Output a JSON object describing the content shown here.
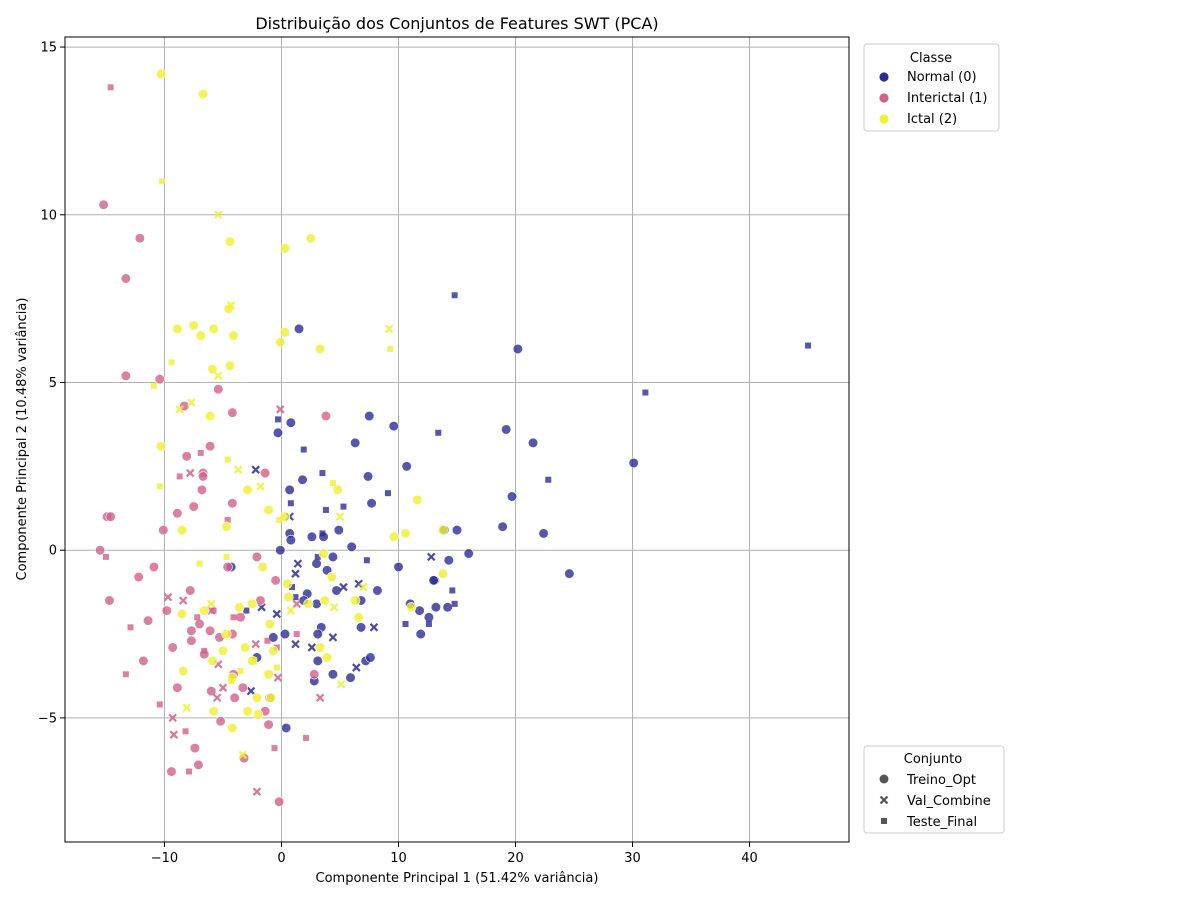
{
  "chart_data": {
    "type": "scatter",
    "title": "Distribuição dos Conjuntos de Features SWT (PCA)",
    "xlabel": "Componente Principal 1 (51.42% variância)",
    "ylabel": "Componente Principal 2 (10.48% variância)",
    "xlim": [
      -18.5,
      48.5
    ],
    "ylim": [
      -8.7,
      15.3
    ],
    "xticks": [
      -10,
      0,
      10,
      20,
      30,
      40
    ],
    "yticks": [
      -5,
      0,
      5,
      10,
      15
    ],
    "grid": true,
    "legend_hue": {
      "title": "Classe",
      "placement": "top-right outside",
      "entries": [
        {
          "label": "Normal (0)",
          "color": "#2c2c96"
        },
        {
          "label": "Interictal (1)",
          "color": "#d0608c"
        },
        {
          "label": "Ictal (2)",
          "color": "#f0f030"
        }
      ]
    },
    "legend_style": {
      "title": "Conjunto",
      "placement": "bottom-right outside",
      "entries": [
        {
          "label": "Treino_Opt",
          "marker": "circle"
        },
        {
          "label": "Val_Combine",
          "marker": "x"
        },
        {
          "label": "Teste_Final",
          "marker": "square"
        }
      ]
    },
    "series": [
      {
        "class": "Normal (0)",
        "set": "Treino_Opt",
        "color": "#2c2c96",
        "marker": "circle",
        "points": [
          [
            1.5,
            6.6
          ],
          [
            20.2,
            6.0
          ],
          [
            7.5,
            4.0
          ],
          [
            9.6,
            3.7
          ],
          [
            19.2,
            3.6
          ],
          [
            21.5,
            3.2
          ],
          [
            6.3,
            3.2
          ],
          [
            0.8,
            3.8
          ],
          [
            -0.3,
            3.5
          ],
          [
            30.1,
            2.6
          ],
          [
            10.7,
            2.5
          ],
          [
            7.4,
            2.2
          ],
          [
            1.8,
            2.1
          ],
          [
            0.7,
            1.8
          ],
          [
            19.7,
            1.6
          ],
          [
            7.7,
            1.4
          ],
          [
            4.9,
            0.6
          ],
          [
            13.9,
            0.6
          ],
          [
            15.0,
            0.6
          ],
          [
            18.9,
            0.7
          ],
          [
            22.4,
            0.5
          ],
          [
            0.7,
            0.5
          ],
          [
            2.6,
            0.4
          ],
          [
            3.6,
            0.4
          ],
          [
            0.8,
            0.3
          ],
          [
            6.0,
            0.1
          ],
          [
            -0.1,
            0.0
          ],
          [
            16.0,
            -0.1
          ],
          [
            4.4,
            -0.2
          ],
          [
            14.3,
            -0.3
          ],
          [
            3.0,
            -0.4
          ],
          [
            10.0,
            -0.5
          ],
          [
            -4.3,
            -0.5
          ],
          [
            3.9,
            -0.6
          ],
          [
            24.6,
            -0.7
          ],
          [
            13.1,
            -0.9
          ],
          [
            13.0,
            -0.9
          ],
          [
            4.7,
            -1.2
          ],
          [
            8.2,
            -1.2
          ],
          [
            2.2,
            -1.3
          ],
          [
            11.0,
            -1.6
          ],
          [
            13.2,
            -1.7
          ],
          [
            14.2,
            -1.7
          ],
          [
            1.9,
            -1.5
          ],
          [
            6.8,
            -1.5
          ],
          [
            3.0,
            -1.6
          ],
          [
            11.8,
            -1.8
          ],
          [
            12.6,
            -2.0
          ],
          [
            6.8,
            -2.3
          ],
          [
            3.4,
            -2.3
          ],
          [
            11.9,
            -2.5
          ],
          [
            0.3,
            -2.5
          ],
          [
            3.1,
            -2.5
          ],
          [
            -0.7,
            -2.6
          ],
          [
            7.2,
            -3.3
          ],
          [
            3.1,
            -3.3
          ],
          [
            7.6,
            -3.2
          ],
          [
            -2.1,
            -3.2
          ],
          [
            4.4,
            -3.7
          ],
          [
            5.9,
            -3.8
          ],
          [
            2.8,
            -3.9
          ],
          [
            0.4,
            -5.3
          ]
        ]
      },
      {
        "class": "Normal (0)",
        "set": "Val_Combine",
        "color": "#2c2c96",
        "marker": "x",
        "points": [
          [
            -2.2,
            2.4
          ],
          [
            0.7,
            1.0
          ],
          [
            12.8,
            -0.2
          ],
          [
            1.4,
            -0.4
          ],
          [
            1.2,
            -0.7
          ],
          [
            6.6,
            -1.0
          ],
          [
            5.3,
            -1.1
          ],
          [
            -1.7,
            -1.7
          ],
          [
            -0.4,
            -1.9
          ],
          [
            7.9,
            -2.3
          ],
          [
            4.4,
            -2.6
          ],
          [
            1.2,
            -2.8
          ],
          [
            2.6,
            -2.9
          ],
          [
            6.4,
            -3.5
          ],
          [
            -2.6,
            -4.2
          ]
        ]
      },
      {
        "class": "Normal (0)",
        "set": "Teste_Final",
        "color": "#2c2c96",
        "marker": "square",
        "points": [
          [
            14.8,
            7.6
          ],
          [
            45.0,
            6.1
          ],
          [
            31.1,
            4.7
          ],
          [
            13.4,
            3.5
          ],
          [
            1.9,
            3.0
          ],
          [
            -0.3,
            3.9
          ],
          [
            3.5,
            2.3
          ],
          [
            22.8,
            2.1
          ],
          [
            9.1,
            1.7
          ],
          [
            0.8,
            1.4
          ],
          [
            5.3,
            1.3
          ],
          [
            3.8,
            1.2
          ],
          [
            3.5,
            0.5
          ],
          [
            3.1,
            -0.2
          ],
          [
            7.3,
            -0.3
          ],
          [
            0.9,
            -1.1
          ],
          [
            14.6,
            -1.2
          ],
          [
            1.2,
            -1.4
          ],
          [
            14.8,
            -1.6
          ],
          [
            10.6,
            -2.2
          ],
          [
            12.6,
            -2.2
          ],
          [
            -3.0,
            -1.8
          ]
        ]
      },
      {
        "class": "Interictal (1)",
        "set": "Treino_Opt",
        "color": "#d0608c",
        "marker": "circle",
        "points": [
          [
            -15.2,
            10.3
          ],
          [
            -12.1,
            9.3
          ],
          [
            -13.3,
            8.1
          ],
          [
            -13.3,
            5.2
          ],
          [
            -10.4,
            5.1
          ],
          [
            -5.4,
            4.8
          ],
          [
            -8.3,
            4.3
          ],
          [
            -4.2,
            4.1
          ],
          [
            3.8,
            4.0
          ],
          [
            -6.1,
            3.1
          ],
          [
            -8.1,
            2.8
          ],
          [
            -6.7,
            2.3
          ],
          [
            -6.7,
            2.2
          ],
          [
            -1.4,
            2.3
          ],
          [
            -6.8,
            1.8
          ],
          [
            -4.2,
            1.4
          ],
          [
            -7.5,
            1.3
          ],
          [
            -8.9,
            1.1
          ],
          [
            -14.9,
            1.0
          ],
          [
            -14.6,
            1.0
          ],
          [
            -10.1,
            0.6
          ],
          [
            -15.5,
            0.0
          ],
          [
            -2.1,
            -0.2
          ],
          [
            -10.9,
            -0.5
          ],
          [
            -4.6,
            -0.5
          ],
          [
            -12.2,
            -0.8
          ],
          [
            -0.5,
            -0.9
          ],
          [
            -7.8,
            -1.2
          ],
          [
            -14.7,
            -1.5
          ],
          [
            -1.8,
            -1.5
          ],
          [
            -9.8,
            -1.8
          ],
          [
            -3.5,
            -2.0
          ],
          [
            -11.4,
            -2.1
          ],
          [
            -7.0,
            -2.2
          ],
          [
            -7.7,
            -2.4
          ],
          [
            -6.1,
            -2.4
          ],
          [
            -5.3,
            -2.6
          ],
          [
            -4.2,
            -2.5
          ],
          [
            -7.7,
            -2.7
          ],
          [
            -9.3,
            -2.9
          ],
          [
            -6.6,
            -3.1
          ],
          [
            -11.8,
            -3.3
          ],
          [
            -4.1,
            -3.7
          ],
          [
            -8.9,
            -4.1
          ],
          [
            -3.3,
            -4.1
          ],
          [
            -6.0,
            -4.2
          ],
          [
            2.8,
            -3.7
          ],
          [
            -4.0,
            -4.4
          ],
          [
            -1.0,
            -4.4
          ],
          [
            -1.4,
            -4.8
          ],
          [
            -5.2,
            -5.1
          ],
          [
            -1.1,
            -5.2
          ],
          [
            -7.4,
            -5.9
          ],
          [
            -3.2,
            -6.2
          ],
          [
            -7.1,
            -6.4
          ],
          [
            -9.4,
            -6.6
          ],
          [
            -0.2,
            -7.5
          ]
        ]
      },
      {
        "class": "Interictal (1)",
        "set": "Val_Combine",
        "color": "#d0608c",
        "marker": "x",
        "points": [
          [
            -0.1,
            4.2
          ],
          [
            -7.8,
            2.3
          ],
          [
            -9.7,
            -1.4
          ],
          [
            -8.4,
            -1.5
          ],
          [
            -6.0,
            -1.8
          ],
          [
            -5.4,
            -3.4
          ],
          [
            1.3,
            -1.6
          ],
          [
            -2.2,
            -2.8
          ],
          [
            -0.3,
            -3.8
          ],
          [
            -5.0,
            -4.1
          ],
          [
            -5.5,
            -4.4
          ],
          [
            3.3,
            -4.4
          ],
          [
            -9.3,
            -5.0
          ],
          [
            -9.2,
            -5.5
          ],
          [
            -2.1,
            -7.2
          ]
        ]
      },
      {
        "class": "Interictal (1)",
        "set": "Teste_Final",
        "color": "#d0608c",
        "marker": "square",
        "points": [
          [
            -14.6,
            13.8
          ],
          [
            -6.9,
            2.9
          ],
          [
            -8.7,
            2.2
          ],
          [
            -4.6,
            0.9
          ],
          [
            -15.0,
            -0.2
          ],
          [
            -12.9,
            -2.3
          ],
          [
            -7.2,
            -2.0
          ],
          [
            -5.8,
            -1.8
          ],
          [
            -4.1,
            -2.0
          ],
          [
            1.3,
            -2.5
          ],
          [
            -1.2,
            -2.7
          ],
          [
            -0.4,
            -2.9
          ],
          [
            -6.6,
            -3.0
          ],
          [
            -13.3,
            -3.7
          ],
          [
            -10.4,
            -4.6
          ],
          [
            -8.2,
            -5.4
          ],
          [
            2.1,
            -5.6
          ],
          [
            -7.9,
            -6.6
          ],
          [
            -0.6,
            -5.9
          ]
        ]
      },
      {
        "class": "Ictal (2)",
        "set": "Treino_Opt",
        "color": "#f0f030",
        "marker": "circle",
        "points": [
          [
            -10.3,
            14.2
          ],
          [
            -6.7,
            13.6
          ],
          [
            2.5,
            9.3
          ],
          [
            -4.4,
            9.2
          ],
          [
            0.3,
            9.0
          ],
          [
            -8.9,
            6.6
          ],
          [
            -7.5,
            6.7
          ],
          [
            -6.9,
            6.4
          ],
          [
            -5.8,
            6.6
          ],
          [
            0.3,
            6.5
          ],
          [
            -4.5,
            7.2
          ],
          [
            -4.1,
            6.4
          ],
          [
            -0.1,
            6.2
          ],
          [
            3.3,
            6.0
          ],
          [
            -4.4,
            5.5
          ],
          [
            -5.9,
            5.4
          ],
          [
            -6.1,
            4.0
          ],
          [
            -10.3,
            3.1
          ],
          [
            4.8,
            1.8
          ],
          [
            -2.9,
            1.8
          ],
          [
            11.6,
            1.5
          ],
          [
            -1.1,
            1.2
          ],
          [
            0.3,
            1.0
          ],
          [
            -4.7,
            0.7
          ],
          [
            -8.5,
            0.6
          ],
          [
            10.6,
            0.5
          ],
          [
            9.6,
            0.4
          ],
          [
            13.8,
            0.6
          ],
          [
            3.6,
            -0.1
          ],
          [
            -1.6,
            -0.5
          ],
          [
            4.3,
            -0.8
          ],
          [
            13.8,
            -0.7
          ],
          [
            0.5,
            -1.0
          ],
          [
            -6.6,
            -1.8
          ],
          [
            -3.6,
            -1.7
          ],
          [
            -2.5,
            -1.6
          ],
          [
            2.3,
            -1.6
          ],
          [
            3.7,
            -1.5
          ],
          [
            6.3,
            -1.5
          ],
          [
            0.6,
            -1.4
          ],
          [
            11.1,
            -1.7
          ],
          [
            -4.7,
            -2.5
          ],
          [
            -1.0,
            -2.2
          ],
          [
            -8.5,
            -1.9
          ],
          [
            -3.1,
            -2.9
          ],
          [
            -5.0,
            -3.0
          ],
          [
            -0.7,
            -3.0
          ],
          [
            3.3,
            -2.9
          ],
          [
            6.6,
            -2.0
          ],
          [
            -2.5,
            -3.3
          ],
          [
            -5.9,
            -3.3
          ],
          [
            -8.4,
            -3.6
          ],
          [
            -1.1,
            -3.7
          ],
          [
            -4.2,
            -3.8
          ],
          [
            -2.1,
            -4.4
          ],
          [
            -0.9,
            -4.4
          ],
          [
            -5.8,
            -4.8
          ],
          [
            -2.9,
            -4.8
          ],
          [
            -2.0,
            -4.9
          ],
          [
            -4.2,
            -5.3
          ],
          [
            3.9,
            -3.2
          ]
        ]
      },
      {
        "class": "Ictal (2)",
        "set": "Val_Combine",
        "color": "#f0f030",
        "marker": "x",
        "points": [
          [
            -5.4,
            10.0
          ],
          [
            -4.3,
            7.3
          ],
          [
            9.2,
            6.6
          ],
          [
            -5.4,
            5.2
          ],
          [
            -7.7,
            4.4
          ],
          [
            -8.7,
            4.2
          ],
          [
            -3.7,
            2.4
          ],
          [
            -1.8,
            1.9
          ],
          [
            5.0,
            1.0
          ],
          [
            7.0,
            -1.1
          ],
          [
            4.5,
            -1.7
          ],
          [
            -6.0,
            -1.6
          ],
          [
            0.8,
            -1.8
          ],
          [
            -2.4,
            -3.3
          ],
          [
            5.1,
            -4.0
          ],
          [
            -8.1,
            -4.7
          ],
          [
            -3.3,
            -6.1
          ]
        ]
      },
      {
        "class": "Ictal (2)",
        "set": "Teste_Final",
        "color": "#f0f030",
        "marker": "square",
        "points": [
          [
            -10.2,
            11.0
          ],
          [
            -9.4,
            5.6
          ],
          [
            -10.9,
            4.9
          ],
          [
            -4.6,
            2.7
          ],
          [
            9.3,
            6.0
          ],
          [
            -10.4,
            1.9
          ],
          [
            4.4,
            2.0
          ],
          [
            -0.2,
            0.9
          ],
          [
            -7.0,
            -0.4
          ],
          [
            -4.7,
            -0.2
          ],
          [
            -3.5,
            -3.6
          ],
          [
            -0.4,
            -3.5
          ],
          [
            -4.3,
            -3.9
          ]
        ]
      }
    ]
  }
}
